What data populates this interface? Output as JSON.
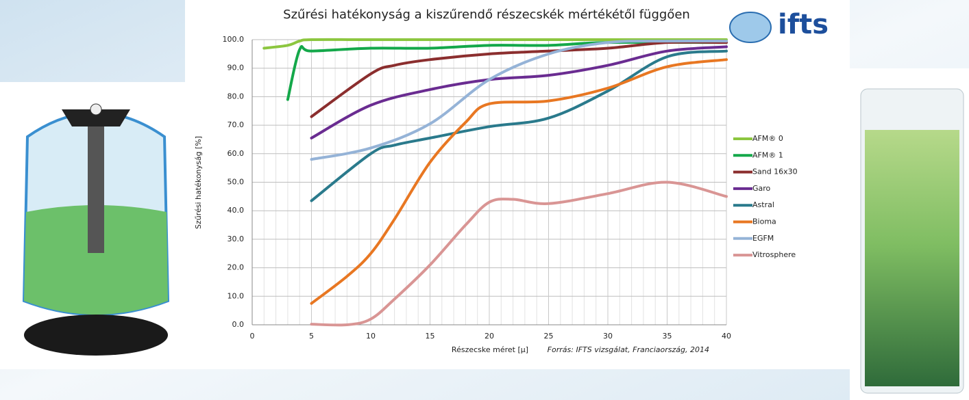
{
  "logo": "ifts",
  "chart_data": {
    "type": "line",
    "title": "Szűrési hatékonyság a kiszűrendő részecskék mértékétől függően",
    "y_label": "Szűrési hatékonyság [%]",
    "x_label": "Részecske méret [µ]",
    "source": "Forrás: IFTS vizsgálat, Franciaország, 2014",
    "xlim": [
      0,
      40
    ],
    "xticks": [
      0,
      5,
      10,
      15,
      20,
      25,
      30,
      35,
      40
    ],
    "ylim": [
      0,
      100
    ],
    "yticks": [
      {
        "value": 0,
        "label": "0.0"
      },
      {
        "value": 10,
        "label": "10.0"
      },
      {
        "value": 20,
        "label": "20.0"
      },
      {
        "value": 30,
        "label": "30.0"
      },
      {
        "value": 40,
        "label": "40.0"
      },
      {
        "value": 50,
        "label": "50.0"
      },
      {
        "value": 60,
        "label": "60.0"
      },
      {
        "value": 70,
        "label": "70.0"
      },
      {
        "value": 80,
        "label": "80.0"
      },
      {
        "value": 90,
        "label": "90.0"
      },
      {
        "value": 100,
        "label": "100.0"
      }
    ],
    "grid": true,
    "legend": "right",
    "series": [
      {
        "name": "AFM® 0",
        "color": "#8cc63f",
        "x": [
          1,
          3,
          4,
          5,
          10,
          20,
          30,
          40
        ],
        "values": [
          97,
          98,
          99.5,
          100,
          100,
          100,
          100,
          100
        ]
      },
      {
        "name": "AFM® 1",
        "color": "#14a84a",
        "x": [
          3,
          4,
          5,
          10,
          15,
          20,
          25,
          30,
          40
        ],
        "values": [
          79,
          96.5,
          96,
          97,
          97,
          98,
          98,
          99,
          99
        ]
      },
      {
        "name": "Sand 16x30",
        "color": "#8b2e2e",
        "x": [
          5,
          10,
          12,
          15,
          20,
          25,
          30,
          35,
          40
        ],
        "values": [
          73,
          88,
          91,
          93,
          95,
          96,
          97,
          99,
          99
        ]
      },
      {
        "name": "Garo",
        "color": "#6a2c91",
        "x": [
          5,
          10,
          15,
          20,
          25,
          30,
          35,
          40
        ],
        "values": [
          65.5,
          77,
          82.5,
          86,
          87.5,
          91,
          96,
          97.5
        ]
      },
      {
        "name": "Astral",
        "color": "#2a7a8c",
        "x": [
          5,
          10,
          12,
          15,
          20,
          25,
          30,
          35,
          40
        ],
        "values": [
          43.5,
          60,
          63,
          65.5,
          69.5,
          72.5,
          82,
          94,
          96
        ]
      },
      {
        "name": "Bioma",
        "color": "#e87722",
        "x": [
          5,
          8,
          10,
          12,
          15,
          18,
          20,
          25,
          30,
          35,
          40
        ],
        "values": [
          7.5,
          17,
          25,
          37,
          57,
          71,
          77.5,
          78.5,
          83,
          90.5,
          93
        ]
      },
      {
        "name": "EGFM",
        "color": "#95b3d7",
        "x": [
          5,
          10,
          15,
          20,
          25,
          30,
          35,
          40
        ],
        "values": [
          58,
          62,
          70.5,
          86,
          95,
          99,
          99.5,
          99.5
        ]
      },
      {
        "name": "Vitrosphere",
        "color": "#d99594",
        "x": [
          5,
          8,
          10,
          12,
          15,
          18,
          20,
          22,
          25,
          30,
          35,
          40
        ],
        "values": [
          0.2,
          0,
          2,
          9,
          21,
          35,
          43,
          44,
          42.5,
          46,
          50,
          45
        ]
      }
    ]
  }
}
